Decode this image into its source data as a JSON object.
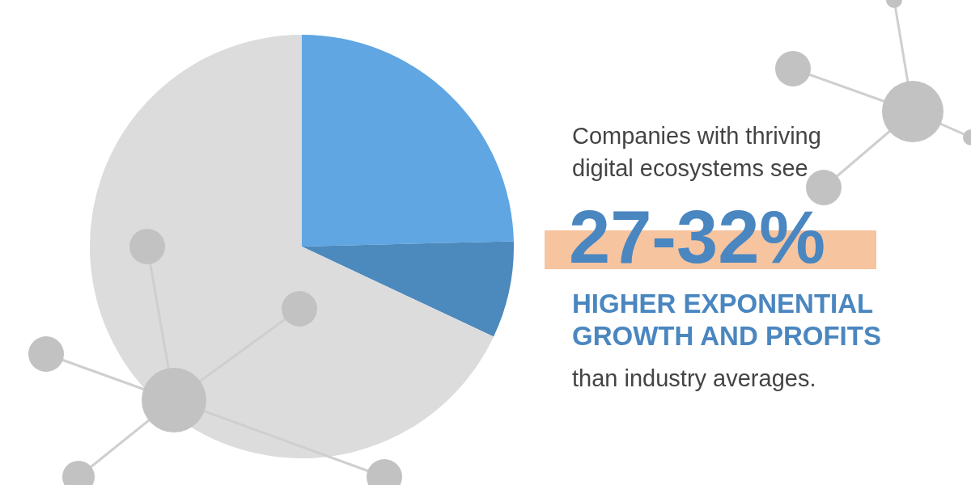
{
  "chart_data": {
    "type": "pie",
    "categories": [
      null,
      null,
      null
    ],
    "values": [
      24.6,
      7.4,
      68
    ],
    "colors": [
      "#5fa6e2",
      "#4c89bd",
      "#dcdcdc"
    ],
    "legend": false,
    "annotations": [
      "Companies with thriving",
      "digital ecosystems see",
      "27-32%",
      "HIGHER EXPONENTIAL",
      "GROWTH AND PROFITS",
      "than industry averages."
    ]
  }
}
